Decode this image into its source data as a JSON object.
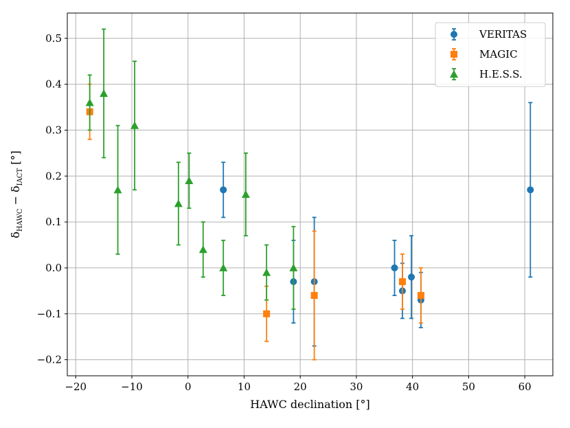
{
  "chart_data": {
    "type": "scatter",
    "xlabel": "HAWC declination [°]",
    "ylabel": {
      "main": "δ",
      "sub1": "HAWC",
      "mid": " − δ",
      "sub2": "IACT",
      "unit": " [°]"
    },
    "xlim": [
      -21.5,
      65
    ],
    "ylim": [
      -0.235,
      0.555
    ],
    "xticks": [
      -20,
      -10,
      0,
      10,
      20,
      30,
      40,
      50,
      60
    ],
    "xtick_labels": [
      "−20",
      "−10",
      "0",
      "10",
      "20",
      "30",
      "40",
      "50",
      "60"
    ],
    "yticks": [
      -0.2,
      -0.1,
      0.0,
      0.1,
      0.2,
      0.3,
      0.4,
      0.5
    ],
    "ytick_labels": [
      "−0.2",
      "−0.1",
      "0.0",
      "0.1",
      "0.2",
      "0.3",
      "0.4",
      "0.5"
    ],
    "grid": true,
    "legend_position": "top-right",
    "series": [
      {
        "name": "VERITAS",
        "color": "#1f77b4",
        "marker": "circle",
        "points": [
          {
            "x": 6.3,
            "y": 0.17,
            "lo": 0.11,
            "hi": 0.23
          },
          {
            "x": 18.8,
            "y": -0.03,
            "lo": -0.12,
            "hi": 0.06
          },
          {
            "x": 22.5,
            "y": -0.03,
            "lo": -0.17,
            "hi": 0.11
          },
          {
            "x": 36.8,
            "y": 0.0,
            "lo": -0.06,
            "hi": 0.06
          },
          {
            "x": 38.2,
            "y": -0.05,
            "lo": -0.11,
            "hi": 0.01
          },
          {
            "x": 39.8,
            "y": -0.02,
            "lo": -0.11,
            "hi": 0.07
          },
          {
            "x": 41.5,
            "y": -0.07,
            "lo": -0.13,
            "hi": -0.01
          },
          {
            "x": 61.0,
            "y": 0.17,
            "lo": -0.02,
            "hi": 0.36
          }
        ]
      },
      {
        "name": "MAGIC",
        "color": "#ff7f0e",
        "marker": "square",
        "points": [
          {
            "x": -17.5,
            "y": 0.34,
            "lo": 0.28,
            "hi": 0.4
          },
          {
            "x": 14.0,
            "y": -0.1,
            "lo": -0.16,
            "hi": -0.04
          },
          {
            "x": 22.5,
            "y": -0.06,
            "lo": -0.2,
            "hi": 0.08
          },
          {
            "x": 38.2,
            "y": -0.03,
            "lo": -0.09,
            "hi": 0.03
          },
          {
            "x": 41.5,
            "y": -0.06,
            "lo": -0.12,
            "hi": 0.0
          }
        ]
      },
      {
        "name": "H.E.S.S.",
        "color": "#2ca02c",
        "marker": "triangle",
        "points": [
          {
            "x": -17.5,
            "y": 0.36,
            "lo": 0.3,
            "hi": 0.42
          },
          {
            "x": -15.0,
            "y": 0.38,
            "lo": 0.24,
            "hi": 0.52
          },
          {
            "x": -12.5,
            "y": 0.17,
            "lo": 0.03,
            "hi": 0.31
          },
          {
            "x": -9.5,
            "y": 0.31,
            "lo": 0.17,
            "hi": 0.45
          },
          {
            "x": -1.7,
            "y": 0.14,
            "lo": 0.05,
            "hi": 0.23
          },
          {
            "x": 0.2,
            "y": 0.19,
            "lo": 0.13,
            "hi": 0.25
          },
          {
            "x": 2.7,
            "y": 0.04,
            "lo": -0.02,
            "hi": 0.1
          },
          {
            "x": 6.3,
            "y": 0.0,
            "lo": -0.06,
            "hi": 0.06
          },
          {
            "x": 10.3,
            "y": 0.16,
            "lo": 0.07,
            "hi": 0.25
          },
          {
            "x": 14.0,
            "y": -0.01,
            "lo": -0.07,
            "hi": 0.05
          },
          {
            "x": 18.8,
            "y": 0.0,
            "lo": -0.09,
            "hi": 0.09
          }
        ]
      }
    ]
  }
}
